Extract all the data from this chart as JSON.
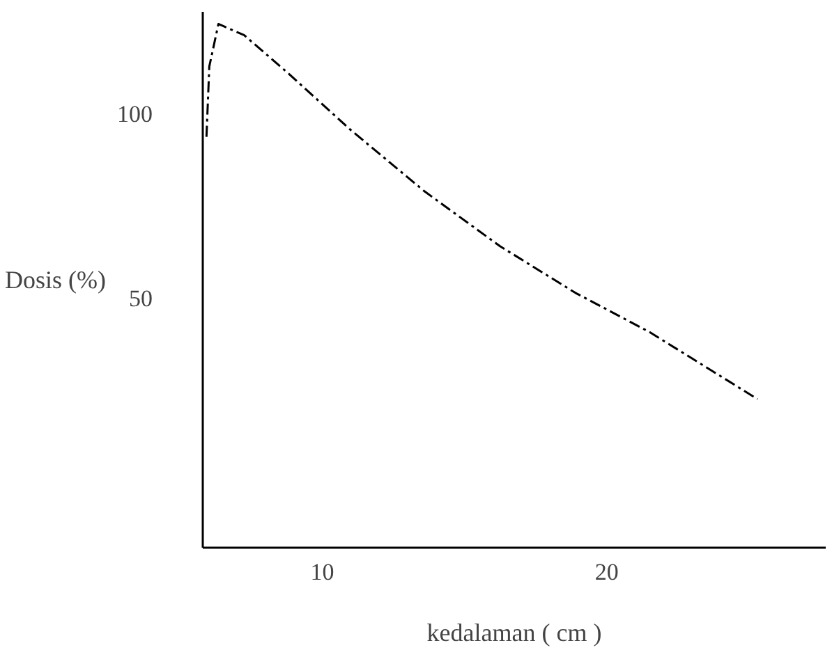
{
  "chart_data": {
    "type": "line",
    "xlabel": "kedalaman ( cm )",
    "ylabel": "Dosis (%)",
    "x": [
      5.93,
      6.03,
      6.35,
      7.25,
      8.84,
      10.95,
      13.6,
      16.24,
      18.9,
      21.5,
      25.3
    ],
    "series": [
      {
        "color": "#000000",
        "values": [
          93.6,
          112.7,
          124.2,
          121.2,
          110.6,
          95.8,
          78.8,
          64.0,
          51.3,
          40.7,
          22.5
        ]
      }
    ],
    "xlim": [
      5.8,
      27.7
    ],
    "ylim": [
      -17.8,
      127.5
    ],
    "xticks": [
      10,
      20
    ],
    "yticks": [
      50,
      100
    ],
    "grid": false,
    "marker": "none",
    "line_style": "dashed"
  }
}
